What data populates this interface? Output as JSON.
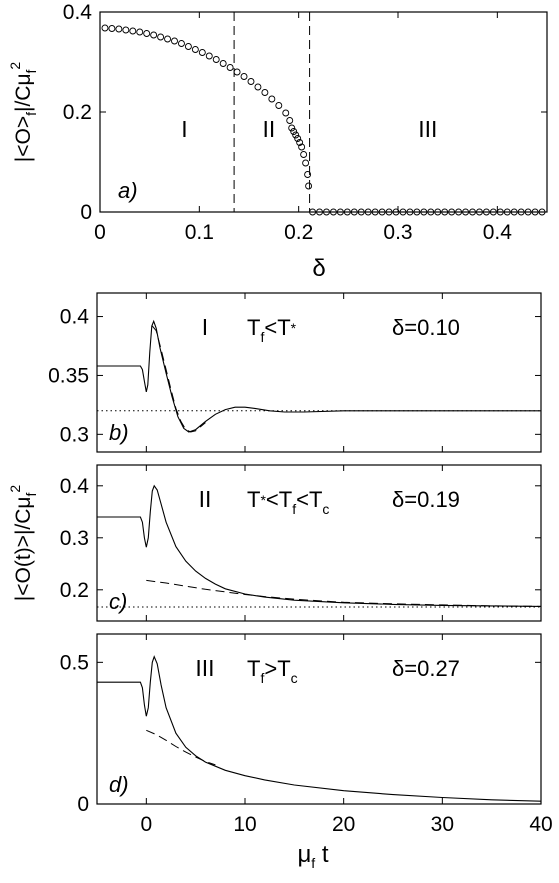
{
  "chart_data": [
    {
      "id": "a",
      "type": "scatter",
      "panel_label": "a)",
      "xlabel": "δ",
      "xlim": [
        0,
        0.45
      ],
      "ylim": [
        0,
        0.4
      ],
      "xticks": [
        "0",
        "0.1",
        "0.2",
        "0.3",
        "0.4"
      ],
      "xtick_values": [
        0,
        0.1,
        0.2,
        0.3,
        0.4
      ],
      "yticks": [
        "0",
        "0.2",
        "0.4"
      ],
      "ytick_values": [
        0,
        0.2,
        0.4
      ],
      "vlines": [
        0.135,
        0.211
      ],
      "regions": [
        {
          "label": "I",
          "x": 0.085,
          "y": 0.09
        },
        {
          "label": "II",
          "x": 0.17,
          "y": 0.09
        },
        {
          "label": "III",
          "x": 0.33,
          "y": 0.09
        }
      ],
      "ylabel": {
        "main": "|<O>",
        "sub1": "f",
        "mid": "|/Cμ",
        "sub2": "f",
        "sup": "2"
      },
      "points": [
        [
          0.005,
          0.368
        ],
        [
          0.012,
          0.367
        ],
        [
          0.019,
          0.366
        ],
        [
          0.026,
          0.364
        ],
        [
          0.033,
          0.362
        ],
        [
          0.04,
          0.36
        ],
        [
          0.047,
          0.357
        ],
        [
          0.054,
          0.354
        ],
        [
          0.061,
          0.35
        ],
        [
          0.068,
          0.346
        ],
        [
          0.075,
          0.342
        ],
        [
          0.082,
          0.337
        ],
        [
          0.089,
          0.331
        ],
        [
          0.096,
          0.325
        ],
        [
          0.103,
          0.319
        ],
        [
          0.11,
          0.312
        ],
        [
          0.117,
          0.305
        ],
        [
          0.124,
          0.297
        ],
        [
          0.131,
          0.289
        ],
        [
          0.138,
          0.28
        ],
        [
          0.145,
          0.271
        ],
        [
          0.152,
          0.261
        ],
        [
          0.159,
          0.25
        ],
        [
          0.166,
          0.239
        ],
        [
          0.173,
          0.226
        ],
        [
          0.18,
          0.213
        ],
        [
          0.187,
          0.198
        ],
        [
          0.191,
          0.183
        ],
        [
          0.193,
          0.168
        ],
        [
          0.195,
          0.161
        ],
        [
          0.197,
          0.154
        ],
        [
          0.199,
          0.147
        ],
        [
          0.201,
          0.139
        ],
        [
          0.203,
          0.13
        ],
        [
          0.205,
          0.115
        ],
        [
          0.207,
          0.098
        ],
        [
          0.209,
          0.075
        ],
        [
          0.21,
          0.052
        ],
        [
          0.214,
          0.0
        ],
        [
          0.221,
          0.0
        ],
        [
          0.228,
          0.0
        ],
        [
          0.235,
          0.0
        ],
        [
          0.242,
          0.0
        ],
        [
          0.249,
          0.0
        ],
        [
          0.256,
          0.0
        ],
        [
          0.263,
          0.0
        ],
        [
          0.27,
          0.0
        ],
        [
          0.277,
          0.0
        ],
        [
          0.284,
          0.0
        ],
        [
          0.291,
          0.0
        ],
        [
          0.298,
          0.0
        ],
        [
          0.305,
          0.0
        ],
        [
          0.312,
          0.0
        ],
        [
          0.319,
          0.0
        ],
        [
          0.326,
          0.0
        ],
        [
          0.333,
          0.0
        ],
        [
          0.34,
          0.0
        ],
        [
          0.347,
          0.0
        ],
        [
          0.354,
          0.0
        ],
        [
          0.361,
          0.0
        ],
        [
          0.368,
          0.0
        ],
        [
          0.375,
          0.0
        ],
        [
          0.382,
          0.0
        ],
        [
          0.389,
          0.0
        ],
        [
          0.396,
          0.0
        ],
        [
          0.403,
          0.0
        ],
        [
          0.41,
          0.0
        ],
        [
          0.417,
          0.0
        ],
        [
          0.424,
          0.0
        ],
        [
          0.431,
          0.0
        ],
        [
          0.438,
          0.0
        ],
        [
          0.445,
          0.0
        ]
      ]
    },
    {
      "id": "b",
      "type": "line",
      "panel_label": "b)",
      "xlim": [
        -5,
        40
      ],
      "ylim": [
        0.285,
        0.42
      ],
      "yticks": [
        "0.3",
        "0.35",
        "0.4"
      ],
      "ytick_values": [
        0.3,
        0.35,
        0.4
      ],
      "xtick_values": [
        0,
        10,
        20,
        30,
        40
      ],
      "region": "I",
      "condition": {
        "T1": "T",
        "s1": "f",
        "op1": "<",
        "T2": "T",
        "s2": "*"
      },
      "delta": "δ=0.10",
      "dotted_level": 0.32,
      "solid": [
        [
          -5,
          0.358
        ],
        [
          -0.6,
          0.358
        ],
        [
          -0.4,
          0.355
        ],
        [
          -0.2,
          0.345
        ],
        [
          0.0,
          0.336
        ],
        [
          0.15,
          0.342
        ],
        [
          0.35,
          0.37
        ],
        [
          0.55,
          0.392
        ],
        [
          0.75,
          0.396
        ],
        [
          1.0,
          0.39
        ],
        [
          1.4,
          0.373
        ],
        [
          2.0,
          0.352
        ],
        [
          2.6,
          0.332
        ],
        [
          3.2,
          0.315
        ],
        [
          3.8,
          0.305
        ],
        [
          4.3,
          0.302
        ],
        [
          5.0,
          0.304
        ],
        [
          6.0,
          0.311
        ],
        [
          7.0,
          0.317
        ],
        [
          8.0,
          0.321
        ],
        [
          9.0,
          0.323
        ],
        [
          10.0,
          0.323
        ],
        [
          11.0,
          0.322
        ],
        [
          12.5,
          0.32
        ],
        [
          14.0,
          0.319
        ],
        [
          16.0,
          0.319
        ],
        [
          20.0,
          0.32
        ],
        [
          30.0,
          0.32
        ],
        [
          40.0,
          0.32
        ]
      ],
      "dashed": [
        [
          0.6,
          0.392
        ],
        [
          1.0,
          0.388
        ],
        [
          1.5,
          0.372
        ],
        [
          2.0,
          0.355
        ],
        [
          2.5,
          0.338
        ],
        [
          3.0,
          0.322
        ],
        [
          3.5,
          0.311
        ],
        [
          4.0,
          0.304
        ],
        [
          4.5,
          0.302
        ],
        [
          5.0,
          0.303
        ],
        [
          6.0,
          0.31
        ]
      ]
    },
    {
      "id": "c",
      "type": "line",
      "panel_label": "c)",
      "xlim": [
        -5,
        40
      ],
      "ylim": [
        0.14,
        0.44
      ],
      "yticks": [
        "0.2",
        "0.3",
        "0.4"
      ],
      "ytick_values": [
        0.2,
        0.3,
        0.4
      ],
      "xtick_values": [
        0,
        10,
        20,
        30,
        40
      ],
      "region": "II",
      "condition": {
        "T1": "T",
        "s1": "*",
        "op1": "<",
        "T2": "T",
        "s2": "f",
        "op2": "<",
        "T3": "T",
        "s3": "c"
      },
      "delta": "δ=0.19",
      "dotted_level": 0.167,
      "solid": [
        [
          -5,
          0.34
        ],
        [
          -0.6,
          0.34
        ],
        [
          -0.4,
          0.33
        ],
        [
          -0.2,
          0.3
        ],
        [
          0.0,
          0.282
        ],
        [
          0.2,
          0.3
        ],
        [
          0.4,
          0.35
        ],
        [
          0.6,
          0.39
        ],
        [
          0.8,
          0.4
        ],
        [
          1.1,
          0.392
        ],
        [
          1.5,
          0.365
        ],
        [
          2.0,
          0.33
        ],
        [
          3.0,
          0.283
        ],
        [
          4.0,
          0.255
        ],
        [
          5.0,
          0.236
        ],
        [
          6.0,
          0.222
        ],
        [
          7.0,
          0.211
        ],
        [
          8.0,
          0.202
        ],
        [
          10.0,
          0.192
        ],
        [
          12.0,
          0.186
        ],
        [
          15.0,
          0.18
        ],
        [
          20.0,
          0.175
        ],
        [
          25.0,
          0.172
        ],
        [
          30.0,
          0.17
        ],
        [
          35.0,
          0.169
        ],
        [
          40.0,
          0.168
        ]
      ],
      "dashed": [
        [
          0.0,
          0.218
        ],
        [
          2.0,
          0.213
        ],
        [
          4.0,
          0.207
        ],
        [
          6.0,
          0.201
        ],
        [
          8.0,
          0.196
        ],
        [
          10.0,
          0.191
        ],
        [
          12.0,
          0.187
        ],
        [
          15.0,
          0.182
        ],
        [
          20.0,
          0.176
        ],
        [
          25.0,
          0.173
        ],
        [
          30.0,
          0.171
        ],
        [
          35.0,
          0.169
        ],
        [
          40.0,
          0.168
        ]
      ]
    },
    {
      "id": "d",
      "type": "line",
      "panel_label": "d)",
      "xlim": [
        -5,
        40
      ],
      "ylim": [
        0,
        0.6
      ],
      "yticks": [
        "0",
        "0.5"
      ],
      "ytick_values": [
        0,
        0.5
      ],
      "xticks": [
        "0",
        "10",
        "20",
        "30",
        "40"
      ],
      "xtick_values": [
        0,
        10,
        20,
        30,
        40
      ],
      "region": "III",
      "condition": {
        "T1": "T",
        "s1": "f",
        "op1": ">",
        "T2": "T",
        "s2": "c"
      },
      "delta": "δ=0.27",
      "solid": [
        [
          -5,
          0.43
        ],
        [
          -0.6,
          0.43
        ],
        [
          -0.4,
          0.41
        ],
        [
          -0.2,
          0.35
        ],
        [
          0.0,
          0.31
        ],
        [
          0.2,
          0.34
        ],
        [
          0.4,
          0.43
        ],
        [
          0.6,
          0.5
        ],
        [
          0.8,
          0.52
        ],
        [
          1.1,
          0.495
        ],
        [
          1.5,
          0.42
        ],
        [
          2.0,
          0.34
        ],
        [
          3.0,
          0.25
        ],
        [
          4.0,
          0.2
        ],
        [
          5.0,
          0.17
        ],
        [
          6.0,
          0.148
        ],
        [
          8.0,
          0.119
        ],
        [
          10.0,
          0.1
        ],
        [
          12.0,
          0.085
        ],
        [
          15.0,
          0.067
        ],
        [
          20.0,
          0.047
        ],
        [
          25.0,
          0.033
        ],
        [
          30.0,
          0.023
        ],
        [
          35.0,
          0.015
        ],
        [
          40.0,
          0.01
        ]
      ],
      "dashed": [
        [
          0.0,
          0.26
        ],
        [
          1.0,
          0.245
        ],
        [
          2.0,
          0.225
        ],
        [
          3.0,
          0.203
        ],
        [
          4.0,
          0.183
        ],
        [
          5.0,
          0.166
        ],
        [
          6.0,
          0.15
        ],
        [
          7.0,
          0.138
        ]
      ]
    }
  ],
  "shared": {
    "bottom_xlabel": {
      "mu": "μ",
      "sub": "f",
      "t": " t"
    },
    "lower_ylabel": {
      "main": "|<O(t)>|/Cμ",
      "sub": "f",
      "sup": "2"
    }
  }
}
